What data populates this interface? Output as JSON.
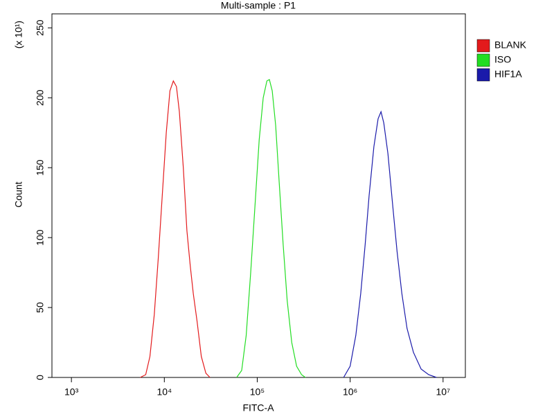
{
  "chart_data": {
    "type": "line",
    "title": "Multi-sample : P1",
    "x_label": "FITC-A",
    "y_label": "Count",
    "y_annotation": "(x 10¹)",
    "x_scale": "log",
    "xlim": [
      617,
      17378000
    ],
    "ylim": [
      0,
      260
    ],
    "xticks": [
      {
        "value": 1000,
        "label": "10³"
      },
      {
        "value": 10000,
        "label": "10⁴"
      },
      {
        "value": 100000,
        "label": "10⁵"
      },
      {
        "value": 1000000,
        "label": "10⁶"
      },
      {
        "value": 10000000,
        "label": "10⁷"
      }
    ],
    "yticks": [
      0,
      50,
      100,
      150,
      200,
      250
    ],
    "legend": "right",
    "series": [
      {
        "name": "BLANK",
        "color": "#e31a1c",
        "x": [
          5500,
          6300,
          7000,
          7800,
          8600,
          9500,
          10500,
          11500,
          12500,
          13500,
          14500,
          16000,
          17500,
          19000,
          20500,
          22500,
          25000,
          28000,
          31000
        ],
        "values": [
          0,
          2,
          15,
          45,
          85,
          130,
          175,
          205,
          212,
          208,
          190,
          150,
          105,
          80,
          60,
          40,
          15,
          3,
          0
        ]
      },
      {
        "name": "ISO",
        "color": "#22dd22",
        "x": [
          60000,
          68000,
          76000,
          85000,
          95000,
          105000,
          116000,
          127000,
          135000,
          145000,
          158000,
          172000,
          190000,
          210000,
          235000,
          265000,
          300000,
          330000
        ],
        "values": [
          0,
          5,
          30,
          75,
          125,
          170,
          200,
          212,
          213,
          205,
          180,
          140,
          95,
          55,
          25,
          8,
          2,
          0
        ]
      },
      {
        "name": "HIF1A",
        "color": "#1a1aaa",
        "x": [
          850000,
          1000000,
          1150000,
          1300000,
          1450000,
          1600000,
          1800000,
          2000000,
          2150000,
          2300000,
          2550000,
          2850000,
          3200000,
          3600000,
          4100000,
          4800000,
          5800000,
          7000000,
          8500000
        ],
        "values": [
          0,
          8,
          30,
          60,
          95,
          130,
          165,
          185,
          190,
          182,
          160,
          125,
          90,
          60,
          35,
          18,
          6,
          2,
          0
        ]
      }
    ]
  }
}
